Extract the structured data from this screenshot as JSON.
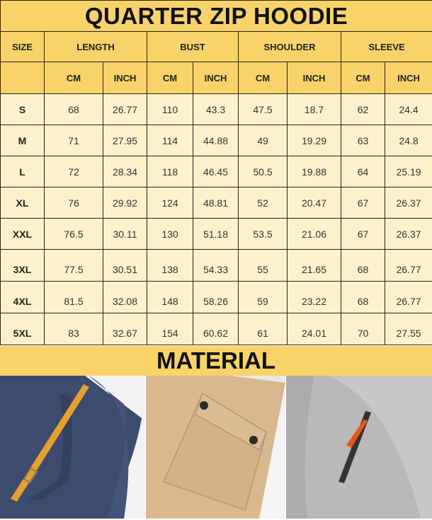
{
  "title": "QUARTER ZIP HOODIE",
  "headers": {
    "size": "SIZE",
    "groups": [
      "LENGTH",
      "BUST",
      "SHOULDER",
      "SLEEVE"
    ],
    "units": [
      "CM",
      "INCH",
      "CM",
      "INCH",
      "CM",
      "INCH",
      "CM",
      "INCH"
    ]
  },
  "rows": [
    {
      "size": "S",
      "values": [
        "68",
        "26.77",
        "110",
        "43.3",
        "47.5",
        "18.7",
        "62",
        "24.4"
      ]
    },
    {
      "size": "M",
      "values": [
        "71",
        "27.95",
        "114",
        "44.88",
        "49",
        "19.29",
        "63",
        "24.8"
      ]
    },
    {
      "size": "L",
      "values": [
        "72",
        "28.34",
        "118",
        "46.45",
        "50.5",
        "19.88",
        "64",
        "25.19"
      ]
    },
    {
      "size": "XL",
      "values": [
        "76",
        "29.92",
        "124",
        "48.81",
        "52",
        "20.47",
        "67",
        "26.37"
      ]
    },
    {
      "size": "XXL",
      "values": [
        "76.5",
        "30.11",
        "130",
        "51.18",
        "53.5",
        "21.06",
        "67",
        "26.37"
      ]
    },
    {
      "size": "3XL",
      "values": [
        "77.5",
        "30.51",
        "138",
        "54.33",
        "55",
        "21.65",
        "68",
        "26.77"
      ]
    },
    {
      "size": "4XL",
      "values": [
        "81.5",
        "32.08",
        "148",
        "58.26",
        "59",
        "23.22",
        "68",
        "26.77"
      ]
    },
    {
      "size": "5XL",
      "values": [
        "83",
        "32.67",
        "154",
        "60.62",
        "61",
        "24.01",
        "70",
        "27.55"
      ]
    }
  ],
  "material_title": "MATERIAL",
  "photos": [
    "navy-fabric-orange-strap",
    "khaki-flap-pocket",
    "gray-fleece-zip-pocket"
  ],
  "colors": {
    "header": "#f8d36a",
    "body": "#fdf1cc",
    "border": "#2a2418"
  }
}
